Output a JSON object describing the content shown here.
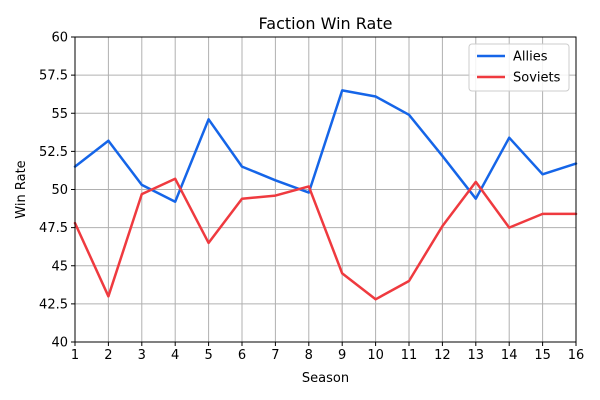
{
  "chart_data": {
    "type": "line",
    "title": "Faction Win Rate",
    "xlabel": "Season",
    "ylabel": "Win Rate",
    "x": [
      1,
      2,
      3,
      4,
      5,
      6,
      7,
      8,
      9,
      10,
      11,
      12,
      13,
      14,
      15,
      16
    ],
    "xlim": [
      1,
      16
    ],
    "ylim": [
      40,
      60
    ],
    "x_ticks": [
      "1",
      "2",
      "3",
      "4",
      "5",
      "6",
      "7",
      "8",
      "9",
      "10",
      "11",
      "12",
      "13",
      "14",
      "15",
      "16"
    ],
    "y_ticks": [
      40,
      42.5,
      45,
      47.5,
      50,
      52.5,
      55,
      57.5,
      60
    ],
    "y_tick_labels": [
      "40",
      "42.5",
      "45",
      "47.5",
      "50",
      "52.5",
      "55",
      "57.5",
      "60"
    ],
    "grid": true,
    "legend": "top-right",
    "series": [
      {
        "name": "Allies",
        "color": "#1565e8",
        "values": [
          51.5,
          53.2,
          50.3,
          49.2,
          54.6,
          51.5,
          50.6,
          49.8,
          56.5,
          56.1,
          54.9,
          52.2,
          49.4,
          53.4,
          51.0,
          51.7
        ]
      },
      {
        "name": "Soviets",
        "color": "#ef3a3f",
        "values": [
          47.8,
          43.0,
          49.7,
          50.7,
          46.5,
          49.4,
          49.6,
          50.2,
          44.5,
          42.8,
          44.0,
          47.6,
          50.5,
          47.5,
          48.4,
          48.4
        ]
      }
    ]
  }
}
